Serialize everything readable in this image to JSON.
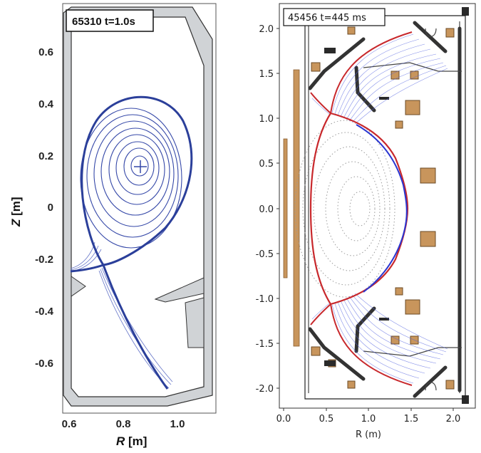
{
  "left_panel": {
    "shot_label": "65310 t=1.0s",
    "x_ticks": [
      "0.6",
      "0.8",
      "1.0"
    ],
    "y_ticks": [
      "0.6",
      "0.4",
      "0.2",
      "0",
      "-0.2",
      "-0.4",
      "-0.6"
    ],
    "x_label_var": "R",
    "x_label_unit": " [m]",
    "y_label_var": "Z",
    "y_label_unit": " [m]",
    "colors": {
      "wall": "#d0d3d6",
      "flux": "#3548a8",
      "lcfs": "#2b3f9a"
    }
  },
  "right_panel": {
    "shot_label": "45456 t=445 ms",
    "x_ticks": [
      "0.0",
      "0.5",
      "1.0",
      "1.5",
      "2.0"
    ],
    "y_ticks": [
      "2.0",
      "1.5",
      "1.0",
      "0.5",
      "0.0",
      "-0.5",
      "-1.0",
      "-1.5",
      "-2.0"
    ],
    "x_label": "R (m)",
    "colors": {
      "coil": "#c8955c",
      "separatrix": "#c8282c",
      "sol": "#5060e0",
      "wall": "#222222",
      "flux_dots": "#9a9a9a"
    }
  },
  "chart_data": [
    {
      "type": "diagram",
      "panel": "left",
      "title": "65310 t=1.0s",
      "xlabel": "R [m]",
      "ylabel": "Z [m]",
      "xlim": [
        0.57,
        1.13
      ],
      "ylim": [
        -0.78,
        0.78
      ],
      "magnetic_axis": {
        "R": 0.86,
        "Z": 0.15
      },
      "x_point": {
        "R": 0.73,
        "Z": -0.23
      }
    },
    {
      "type": "diagram",
      "panel": "right",
      "title": "45456 t=445 ms",
      "xlabel": "R (m)",
      "ylabel": "",
      "xlim": [
        -0.05,
        2.2
      ],
      "ylim": [
        -2.25,
        2.2
      ],
      "magnetic_axis": {
        "R": 0.9,
        "Z": 0.0
      },
      "x_points": [
        {
          "R": 0.62,
          "Z": 1.12
        },
        {
          "R": 0.62,
          "Z": -1.12
        }
      ]
    }
  ]
}
